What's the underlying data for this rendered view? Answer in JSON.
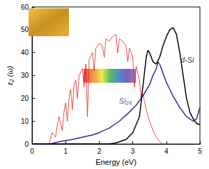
{
  "chart_data": {
    "type": "line",
    "xlabel": "Energy (eV)",
    "ylabel": "ε₂ (ω)",
    "xlim": [
      0,
      5
    ],
    "xticks": [
      0,
      1,
      2,
      3,
      4,
      5
    ],
    "ylim": [
      0,
      60
    ],
    "yticks": [
      0,
      10,
      20,
      30,
      40,
      50,
      60
    ],
    "grid": false,
    "series": [
      {
        "color": "#e8201c",
        "x": [
          0.5,
          0.6,
          0.7,
          0.75,
          0.8,
          0.9,
          0.95,
          1.0,
          1.05,
          1.1,
          1.15,
          1.2,
          1.25,
          1.3,
          1.35,
          1.4,
          1.5,
          1.55,
          1.6,
          1.65,
          1.7,
          1.8,
          1.85,
          1.9,
          2.0,
          2.1,
          2.15,
          2.2,
          2.3,
          2.4,
          2.5,
          2.55,
          2.6,
          2.7,
          2.8,
          2.85,
          2.9,
          3.0,
          3.05,
          3.1,
          3.2,
          3.25,
          3.3,
          3.4,
          3.5,
          3.6,
          3.7,
          3.8,
          3.9
        ],
        "values": [
          0,
          5,
          3,
          8,
          12,
          6,
          14,
          18,
          10,
          20,
          24,
          15,
          26,
          28,
          20,
          30,
          33,
          25,
          35,
          12,
          37,
          40,
          32,
          42,
          44,
          43,
          38,
          46,
          45,
          47,
          48,
          40,
          46,
          45,
          43,
          36,
          42,
          38,
          25,
          34,
          28,
          20,
          22,
          15,
          10,
          6,
          3,
          1,
          0
        ]
      },
      {
        "color": "#2a2a9a",
        "x": [
          0,
          0.5,
          0.6,
          0.8,
          1.0,
          1.2,
          1.5,
          1.8,
          2.0,
          2.3,
          2.6,
          2.9,
          3.1,
          3.3,
          3.5,
          3.6,
          3.7,
          3.75,
          3.8,
          3.9,
          4.0,
          4.1,
          4.2,
          4.4,
          4.6,
          4.8,
          4.9,
          5.0
        ],
        "values": [
          0,
          0,
          0.3,
          1,
          1.5,
          2,
          3,
          4,
          5,
          7,
          10,
          14,
          17,
          21,
          26,
          30,
          33,
          36,
          35,
          31,
          27,
          24,
          21,
          16,
          12,
          10,
          11,
          16
        ]
      },
      {
        "color": "#000000",
        "x": [
          0,
          2.3,
          2.5,
          2.8,
          3.0,
          3.2,
          3.3,
          3.4,
          3.45,
          3.5,
          3.6,
          3.7,
          3.8,
          3.9,
          4.0,
          4.1,
          4.2,
          4.3,
          4.4,
          4.5,
          4.6,
          4.7,
          4.8,
          4.9,
          5.0
        ],
        "values": [
          0,
          0,
          0.5,
          2,
          5,
          12,
          25,
          38,
          41,
          40,
          36,
          35,
          38,
          43,
          47,
          50,
          51,
          48,
          40,
          30,
          20,
          14,
          11,
          9,
          8.5
        ]
      }
    ],
    "annotations": [
      {
        "text": "d-Si",
        "x": 4.62,
        "y": 37,
        "color": "#000000"
      },
      {
        "text": "Si₂₄",
        "x": 2.78,
        "y": 19,
        "color": "#2a2a9a"
      }
    ]
  }
}
